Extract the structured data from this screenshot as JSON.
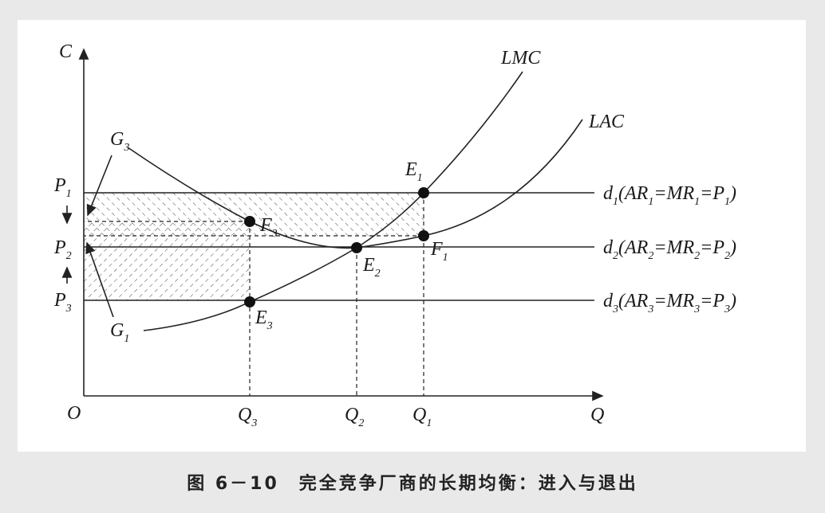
{
  "axes": {
    "y": [
      "C"
    ],
    "origin": [
      "O"
    ],
    "x": [
      "Q"
    ]
  },
  "curves": {
    "lmc": [
      "LMC"
    ],
    "lac": [
      "LAC"
    ]
  },
  "curve_ends": {
    "g3": [
      "G",
      "3"
    ],
    "g1": [
      "G",
      "1"
    ]
  },
  "points": {
    "e1": [
      "E",
      "1"
    ],
    "e2": [
      "E",
      "2"
    ],
    "e3": [
      "E",
      "3"
    ],
    "f1": [
      "F",
      "1"
    ],
    "f3": [
      "F",
      "3"
    ]
  },
  "prices": {
    "p1": [
      "P",
      "1"
    ],
    "p2": [
      "P",
      "2"
    ],
    "p3": [
      "P",
      "3"
    ]
  },
  "quantities": {
    "q1": [
      "Q",
      "1"
    ],
    "q2": [
      "Q",
      "2"
    ],
    "q3": [
      "Q",
      "3"
    ]
  },
  "demand": {
    "d1": [
      "d",
      "1",
      "(AR",
      "1",
      "=MR",
      "1",
      "=P",
      "1",
      ")"
    ],
    "d2": [
      "d",
      "2",
      "(AR",
      "2",
      "=MR",
      "2",
      "=P",
      "2",
      ")"
    ],
    "d3": [
      "d",
      "3",
      "(AR",
      "3",
      "=MR",
      "3",
      "=P",
      "3",
      ")"
    ]
  },
  "caption": "图 6－10　完全竞争厂商的长期均衡：进入与退出"
}
